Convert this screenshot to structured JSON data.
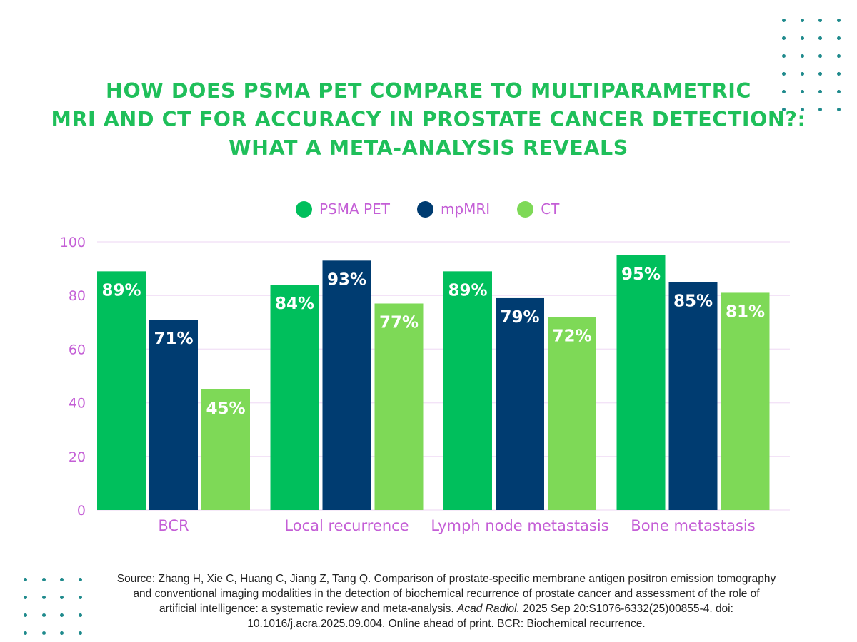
{
  "title": {
    "lines": [
      "HOW DOES PSMA PET COMPARE TO MULTIPARAMETRIC",
      "MRI AND CT FOR ACCURACY IN PROSTATE CANCER DETECTION?:",
      "WHAT A META-ANALYSIS REVEALS"
    ]
  },
  "colors": {
    "title": "#1fbf5a",
    "psma_pet": "#00bf5c",
    "mpmri": "#003c71",
    "ct": "#7ed957",
    "axis_text": "#c45ed6",
    "gridline": "#f3e3f7",
    "dots": "#1f8a8c"
  },
  "legend": [
    {
      "label": "PSMA PET",
      "color": "#00bf5c"
    },
    {
      "label": "mpMRI",
      "color": "#003c71"
    },
    {
      "label": "CT",
      "color": "#7ed957"
    }
  ],
  "chart_data": {
    "type": "bar",
    "title": "HOW DOES PSMA PET COMPARE TO MULTIPARAMETRIC MRI AND CT FOR ACCURACY IN PROSTATE CANCER DETECTION?: WHAT A META-ANALYSIS REVEALS",
    "xlabel": "",
    "ylabel": "",
    "categories": [
      "BCR",
      "Local recurrence",
      "Lymph node metastasis",
      "Bone metastasis"
    ],
    "series": [
      {
        "name": "PSMA PET",
        "values": [
          89,
          84,
          89,
          95
        ],
        "labels": [
          "89%",
          "84%",
          "89%",
          "95%"
        ]
      },
      {
        "name": "mpMRI",
        "values": [
          71,
          93,
          79,
          85
        ],
        "labels": [
          "71%",
          "93%",
          "79%",
          "85%"
        ]
      },
      {
        "name": "CT",
        "values": [
          45,
          77,
          72,
          81
        ],
        "labels": [
          "45%",
          "77%",
          "72%",
          "81%"
        ]
      }
    ],
    "ylim": [
      0,
      100
    ],
    "yticks": [
      0,
      20,
      40,
      60,
      80,
      100
    ],
    "ytick_labels": [
      "0",
      "20",
      "40",
      "60",
      "80",
      "100"
    ],
    "grid": true,
    "legend_position": "top-center"
  },
  "source": {
    "line1": "Source: Zhang H, Xie C, Huang C, Jiang Z, Tang Q. Comparison of prostate-specific membrane antigen positron emission tomography",
    "line2": "and conventional imaging modalities in the detection of biochemical recurrence of prostate cancer and assessment of the role of",
    "line3_pre": "artificial intelligence: a systematic review and meta-analysis. ",
    "line3_journal": "Acad Radiol.",
    "line3_post": " 2025 Sep 20:S1076-6332(25)00855-4. doi:",
    "line4": "10.1016/j.acra.2025.09.004. Online ahead of print. BCR: Biochemical recurrence."
  }
}
